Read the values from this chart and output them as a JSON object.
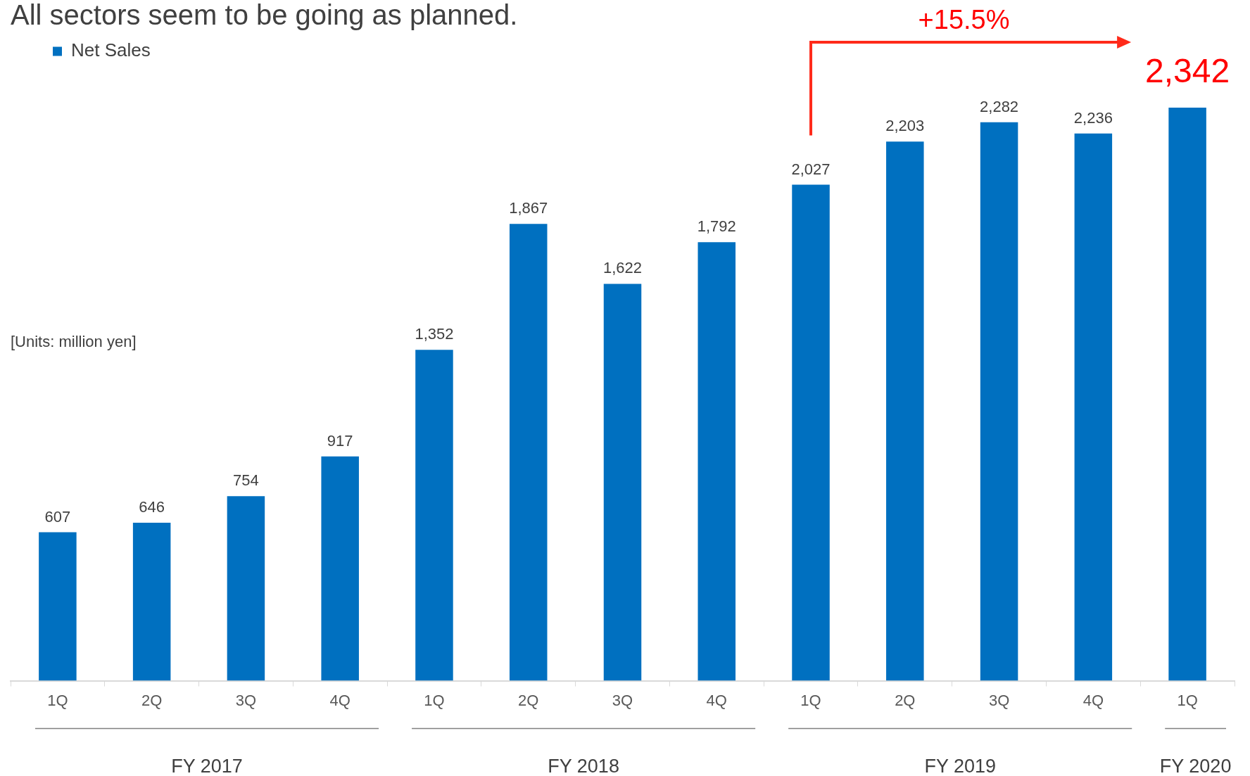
{
  "chart_data": {
    "type": "bar",
    "title": "All sectors seem to be going as planned.",
    "categories": [
      "1Q",
      "2Q",
      "3Q",
      "4Q",
      "1Q",
      "2Q",
      "3Q",
      "4Q",
      "1Q",
      "2Q",
      "3Q",
      "4Q",
      "1Q"
    ],
    "series": [
      {
        "name": "Net Sales",
        "color": "#0070c0",
        "values": [
          607,
          646,
          754,
          917,
          1352,
          1867,
          1622,
          1792,
          2027,
          2203,
          2282,
          2236,
          2342
        ],
        "value_labels": [
          "607",
          "646",
          "754",
          "917",
          "1,352",
          "1,867",
          "1,622",
          "1,792",
          "2,027",
          "2,203",
          "2,282",
          "2,236",
          "2,342"
        ]
      }
    ],
    "legend": "top left",
    "grid": false,
    "annotations": [
      "+15.5%",
      "[Units: million yen]",
      "FY 2017",
      "FY 2018",
      "FY 2019",
      "FY 2020"
    ]
  }
}
